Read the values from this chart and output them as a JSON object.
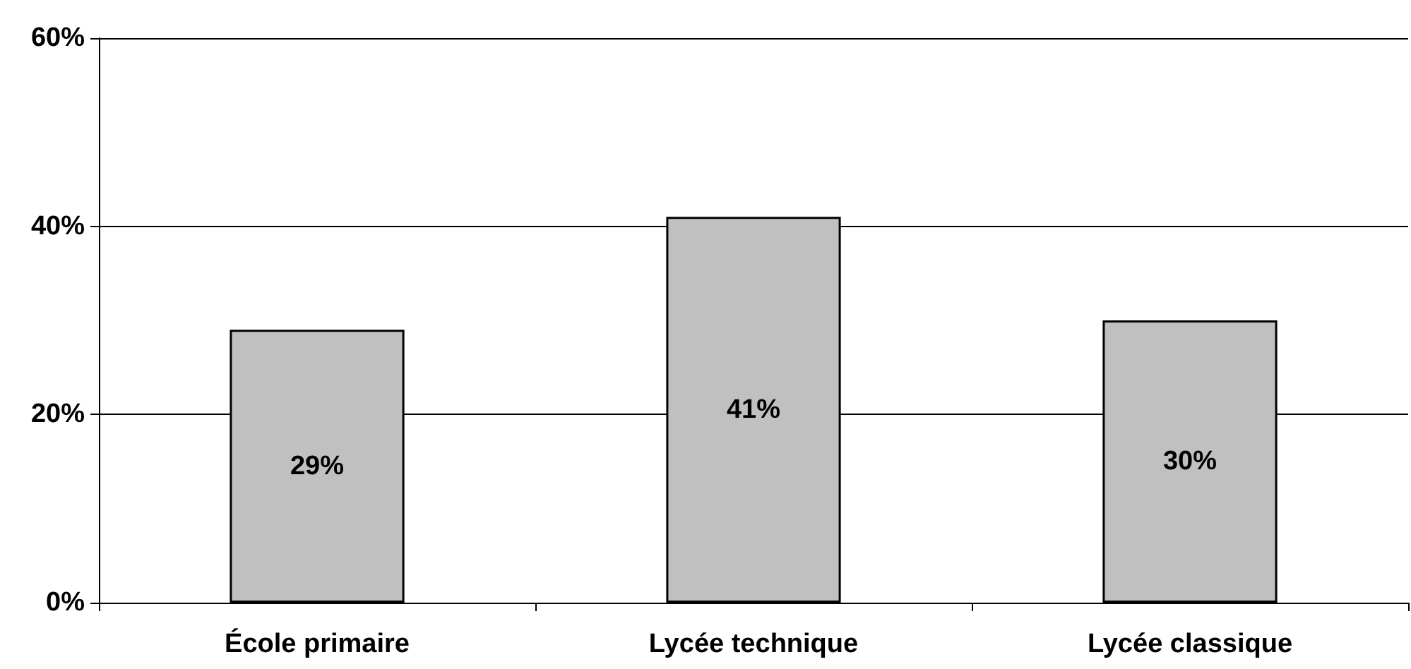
{
  "chart_data": {
    "type": "bar",
    "categories": [
      "École primaire",
      "Lycée technique",
      "Lycée classique"
    ],
    "values": [
      29,
      41,
      30
    ],
    "value_labels": [
      "29%",
      "41%",
      "30%"
    ],
    "color": "#c0c0c0",
    "ylim": [
      0,
      60
    ],
    "yticks": [
      {
        "value": 0,
        "label": "0%"
      },
      {
        "value": 20,
        "label": "20%"
      },
      {
        "value": 40,
        "label": "40%"
      },
      {
        "value": 60,
        "label": "60%"
      }
    ],
    "grid": "y"
  }
}
